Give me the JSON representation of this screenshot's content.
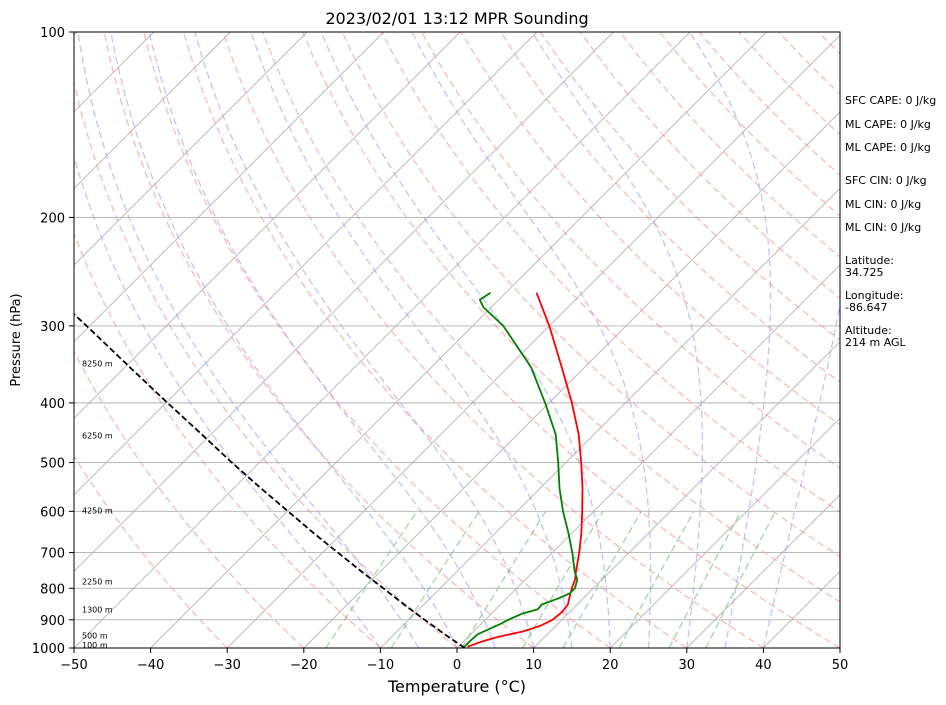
{
  "chart_data": {
    "type": "line",
    "title": "2023/02/01 13:12 MPR Sounding",
    "xlabel": "Temperature (°C)",
    "ylabel": "Pressure (hPa)",
    "xlim": [
      -50,
      50
    ],
    "ylim": [
      1000,
      100
    ],
    "y_scale": "log",
    "x_ticks": [
      -50,
      -40,
      -30,
      -20,
      -10,
      0,
      10,
      20,
      30,
      40,
      50
    ],
    "y_ticks": [
      1000,
      900,
      800,
      700,
      600,
      500,
      400,
      300,
      200,
      100
    ],
    "grid": "horizontal isobars and skewed isotherms",
    "colors": {
      "temperature": "#ff0000",
      "dewpoint": "#008000",
      "parcel": "#000000",
      "dry_adiabats": "#ff9999",
      "moist_adiabats": "#9999ff",
      "mixing_ratio": "#7fbf7f"
    },
    "series": [
      {
        "key": "temperature",
        "points": [
          {
            "p": 995,
            "t": 1.2
          },
          {
            "p": 975,
            "t": 2.5
          },
          {
            "p": 960,
            "t": 3.8
          },
          {
            "p": 940,
            "t": 6.5
          },
          {
            "p": 920,
            "t": 8.0
          },
          {
            "p": 900,
            "t": 8.8
          },
          {
            "p": 875,
            "t": 9.0
          },
          {
            "p": 850,
            "t": 8.8
          },
          {
            "p": 825,
            "t": 8.0
          },
          {
            "p": 800,
            "t": 7.2
          },
          {
            "p": 775,
            "t": 6.5
          },
          {
            "p": 750,
            "t": 5.5
          },
          {
            "p": 700,
            "t": 3.5
          },
          {
            "p": 650,
            "t": 1.2
          },
          {
            "p": 600,
            "t": -1.5
          },
          {
            "p": 550,
            "t": -4.5
          },
          {
            "p": 500,
            "t": -8.0
          },
          {
            "p": 450,
            "t": -12.0
          },
          {
            "p": 400,
            "t": -17.0
          },
          {
            "p": 350,
            "t": -23.0
          },
          {
            "p": 300,
            "t": -30.0
          },
          {
            "p": 265,
            "t": -36.0
          }
        ]
      },
      {
        "key": "dewpoint",
        "points": [
          {
            "p": 995,
            "t": 0.8
          },
          {
            "p": 975,
            "t": 0.8
          },
          {
            "p": 950,
            "t": 0.9
          },
          {
            "p": 930,
            "t": 1.8
          },
          {
            "p": 915,
            "t": 2.5
          },
          {
            "p": 900,
            "t": 3.0
          },
          {
            "p": 880,
            "t": 4.0
          },
          {
            "p": 865,
            "t": 5.5
          },
          {
            "p": 850,
            "t": 5.4
          },
          {
            "p": 830,
            "t": 6.8
          },
          {
            "p": 815,
            "t": 7.6
          },
          {
            "p": 800,
            "t": 7.6
          },
          {
            "p": 775,
            "t": 6.8
          },
          {
            "p": 750,
            "t": 5.3
          },
          {
            "p": 700,
            "t": 2.6
          },
          {
            "p": 650,
            "t": -0.5
          },
          {
            "p": 600,
            "t": -4.0
          },
          {
            "p": 550,
            "t": -7.5
          },
          {
            "p": 500,
            "t": -11.0
          },
          {
            "p": 450,
            "t": -15.0
          },
          {
            "p": 400,
            "t": -20.5
          },
          {
            "p": 350,
            "t": -27.0
          },
          {
            "p": 300,
            "t": -36.0
          },
          {
            "p": 280,
            "t": -41.0
          },
          {
            "p": 272,
            "t": -42.5
          },
          {
            "p": 265,
            "t": -42.0
          }
        ]
      },
      {
        "key": "parcel",
        "points": [
          {
            "p": 1000,
            "t": 1.0
          },
          {
            "p": 950,
            "t": -3.4
          },
          {
            "p": 900,
            "t": -7.9
          },
          {
            "p": 850,
            "t": -12.6
          },
          {
            "p": 800,
            "t": -17.4
          },
          {
            "p": 750,
            "t": -22.6
          },
          {
            "p": 700,
            "t": -28.0
          },
          {
            "p": 650,
            "t": -33.8
          },
          {
            "p": 600,
            "t": -39.9
          },
          {
            "p": 550,
            "t": -46.5
          },
          {
            "p": 500,
            "t": -53.6
          },
          {
            "p": 450,
            "t": -61.2
          },
          {
            "p": 400,
            "t": -69.8
          },
          {
            "p": 350,
            "t": -79.4
          },
          {
            "p": 300,
            "t": -90.4
          },
          {
            "p": 272,
            "t": -97.5
          }
        ]
      }
    ],
    "height_labels": [
      {
        "p": 988,
        "text": "100 m"
      },
      {
        "p": 954,
        "text": "500 m"
      },
      {
        "p": 866,
        "text": "1300 m"
      },
      {
        "p": 780,
        "text": "2250 m"
      },
      {
        "p": 598,
        "text": "4250 m"
      },
      {
        "p": 452,
        "text": "6250 m"
      },
      {
        "p": 345,
        "text": "8250 m"
      }
    ],
    "side_info": [
      {
        "text": "SFC CAPE: 0 J/kg"
      },
      {
        "text": "ML CAPE: 0 J/kg"
      },
      {
        "text": "ML CAPE: 0 J/kg"
      },
      {
        "text": "SFC CIN: 0 J/kg"
      },
      {
        "text": "ML CIN: 0 J/kg"
      },
      {
        "text": "ML CIN: 0 J/kg"
      },
      {
        "text": "Latitude:"
      },
      {
        "text": "34.725"
      },
      {
        "text": "Longitude:"
      },
      {
        "text": "-86.647"
      },
      {
        "text": "Altitude:"
      },
      {
        "text": "214 m AGL"
      }
    ]
  }
}
